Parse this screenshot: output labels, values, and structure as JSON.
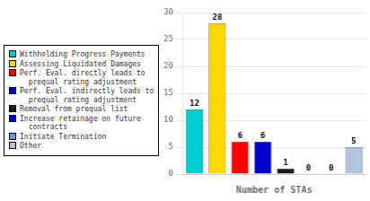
{
  "chart_data": {
    "type": "bar",
    "categories": [
      "Withholding Progress Payments",
      "Assessing Liquidated Damages",
      "Perf. Eval. directly leads to\n  prequal rating adjustment",
      "Perf. Eval. indirectly leads to\n  prequal rating adjustment",
      "Removal from prequal list",
      "Increase retainage on future\n  contracts",
      "Initiate Termination",
      "Other"
    ],
    "values": [
      12,
      28,
      6,
      6,
      1,
      0,
      0,
      5
    ],
    "colors": [
      "#00CED1",
      "#FFD700",
      "#FF0000",
      "#0000CD",
      "#1a1a1a",
      "#0000CD",
      "#6495ED",
      "#B0C4DE"
    ],
    "xlabel": "Number of STAs",
    "ylim": [
      0,
      30
    ],
    "yticks": [
      0,
      5,
      10,
      15,
      20,
      25,
      30
    ],
    "grid": true,
    "data_labels": true,
    "tick_labels": "y",
    "legend": "left"
  }
}
